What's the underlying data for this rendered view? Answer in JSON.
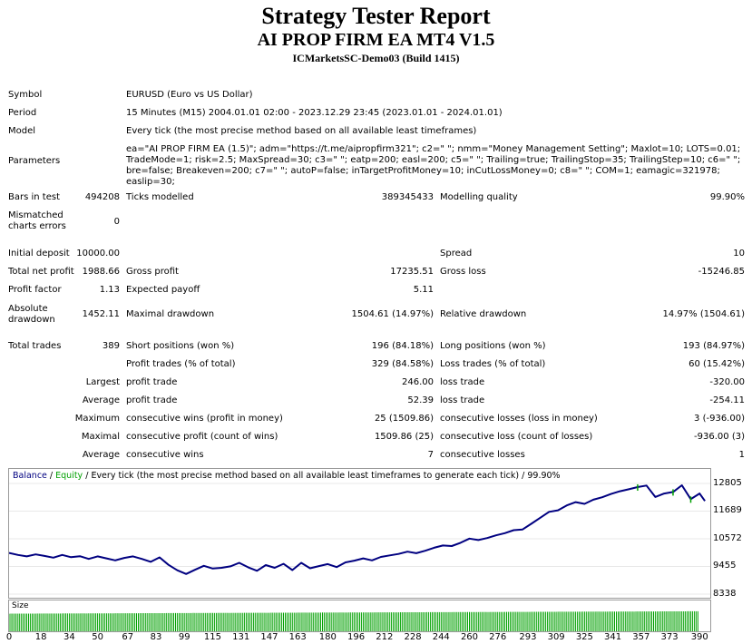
{
  "header": {
    "title": "Strategy Tester Report",
    "ea_name": "AI PROP FIRM EA MT4 V1.5",
    "account": "ICMarketsSC-Demo03 (Build 1415)"
  },
  "info": {
    "symbol_label": "Symbol",
    "symbol_value": "EURUSD (Euro vs US Dollar)",
    "period_label": "Period",
    "period_value": "15 Minutes (M15) 2004.01.01 02:00 - 2023.12.29 23:45 (2023.01.01 - 2024.01.01)",
    "model_label": "Model",
    "model_value": "Every tick (the most precise method based on all available least timeframes)",
    "parameters_label": "Parameters",
    "parameters_value": "ea=\"AI PROP FIRM EA (1.5)\"; adm=\"https://t.me/aipropfirm321\"; c2=\" \"; nmm=\"Money Management Setting\"; Maxlot=10; LOTS=0.01; TradeMode=1; risk=2.5; MaxSpread=30; c3=\" \"; eatp=200; easl=200; c5=\" \"; Trailing=true; TrailingStop=35; TrailingStep=10; c6=\" \"; bre=false; Breakeven=200; c7=\" \"; autoP=false; inTargetProfitMoney=10; inCutLossMoney=0; c8=\" \"; COM=1; eamagic=321978; easlip=30;"
  },
  "stats": {
    "bars_label": "Bars in test",
    "bars_value": "494208",
    "ticks_label": "Ticks modelled",
    "ticks_value": "389345433",
    "quality_label": "Modelling quality",
    "quality_value": "99.90%",
    "mismatched_label": "Mismatched charts errors",
    "mismatched_value": "0",
    "initial_label": "Initial deposit",
    "initial_value": "10000.00",
    "spread_label": "Spread",
    "spread_value": "10",
    "netprofit_label": "Total net profit",
    "netprofit_value": "1988.66",
    "grossprofit_label": "Gross profit",
    "grossprofit_value": "17235.51",
    "grossloss_label": "Gross loss",
    "grossloss_value": "-15246.85",
    "pf_label": "Profit factor",
    "pf_value": "1.13",
    "ep_label": "Expected payoff",
    "ep_value": "5.11",
    "absdd_label": "Absolute drawdown",
    "absdd_value": "1452.11",
    "maxdd_label": "Maximal drawdown",
    "maxdd_value": "1504.61 (14.97%)",
    "reldd_label": "Relative drawdown",
    "reldd_value": "14.97% (1504.61)",
    "trades_label": "Total trades",
    "trades_value": "389",
    "short_label": "Short positions (won %)",
    "short_value": "196 (84.18%)",
    "long_label": "Long positions (won %)",
    "long_value": "193 (84.97%)",
    "ptrades_label": "Profit trades (% of total)",
    "ptrades_value": "329 (84.58%)",
    "ltrades_label": "Loss trades (% of total)",
    "ltrades_value": "60 (15.42%)",
    "largest_label": "Largest",
    "largest_profit_label": "profit trade",
    "largest_profit_value": "246.00",
    "largest_loss_label": "loss trade",
    "largest_loss_value": "-320.00",
    "average_label": "Average",
    "average_profit_label": "profit trade",
    "average_profit_value": "52.39",
    "average_loss_label": "loss trade",
    "average_loss_value": "-254.11",
    "maximum_label": "Maximum",
    "max_wins_label": "consecutive wins (profit in money)",
    "max_wins_value": "25 (1509.86)",
    "max_losses_label": "consecutive losses (loss in money)",
    "max_losses_value": "3 (-936.00)",
    "maximal_label": "Maximal",
    "maximal_profit_label": "consecutive profit (count of wins)",
    "maximal_profit_value": "1509.86 (25)",
    "maximal_loss_label": "consecutive loss (count of losses)",
    "maximal_loss_value": "-936.00 (3)",
    "avg_label": "Average",
    "avg_wins_label": "consecutive wins",
    "avg_wins_value": "7",
    "avg_losses_label": "consecutive losses",
    "avg_losses_value": "1"
  },
  "chart_data": {
    "type": "line",
    "title_balance": "Balance",
    "title_equity": "Equity",
    "title_rest": "Every tick (the most precise method based on all available least timeframes to generate each tick)",
    "title_quality": "99.90%",
    "y_ticks": [
      "12805",
      "11689",
      "10572",
      "9455",
      "8338"
    ],
    "ylim": [
      8338,
      12805
    ],
    "x_ticks": [
      "0",
      "18",
      "34",
      "50",
      "67",
      "83",
      "99",
      "115",
      "131",
      "147",
      "163",
      "180",
      "196",
      "212",
      "228",
      "244",
      "260",
      "276",
      "293",
      "309",
      "325",
      "341",
      "357",
      "373",
      "390"
    ],
    "xlim": [
      0,
      395
    ],
    "colors": {
      "balance": "#000080",
      "equity": "#00a000",
      "volume": "#00a000"
    },
    "size_label": "Size",
    "series": [
      {
        "name": "Balance",
        "x": [
          0,
          5,
          10,
          15,
          20,
          25,
          30,
          35,
          40,
          45,
          50,
          55,
          60,
          65,
          70,
          75,
          80,
          85,
          90,
          95,
          100,
          105,
          110,
          115,
          120,
          125,
          130,
          135,
          140,
          145,
          150,
          155,
          160,
          165,
          170,
          175,
          180,
          185,
          190,
          195,
          200,
          205,
          210,
          215,
          220,
          225,
          230,
          235,
          240,
          245,
          250,
          255,
          260,
          265,
          270,
          275,
          280,
          285,
          290,
          295,
          300,
          305,
          310,
          315,
          320,
          325,
          330,
          335,
          340,
          345,
          350,
          355,
          360,
          365,
          370,
          375,
          380,
          385,
          390,
          393
        ],
        "y": [
          10000,
          9920,
          9860,
          9940,
          9880,
          9810,
          9920,
          9830,
          9870,
          9760,
          9860,
          9780,
          9700,
          9800,
          9860,
          9760,
          9640,
          9820,
          9520,
          9300,
          9150,
          9320,
          9480,
          9370,
          9400,
          9460,
          9600,
          9420,
          9280,
          9510,
          9400,
          9560,
          9310,
          9600,
          9380,
          9470,
          9550,
          9430,
          9620,
          9690,
          9780,
          9700,
          9840,
          9900,
          9960,
          10050,
          9990,
          10090,
          10210,
          10300,
          10280,
          10410,
          10580,
          10520,
          10600,
          10710,
          10800,
          10920,
          10950,
          11180,
          11420,
          11660,
          11720,
          11920,
          12050,
          11980,
          12150,
          12250,
          12380,
          12490,
          12570,
          12660,
          12720,
          12260,
          12400,
          12460,
          12730,
          12170,
          12400,
          12100
        ]
      }
    ],
    "volume_level": 0.85
  }
}
